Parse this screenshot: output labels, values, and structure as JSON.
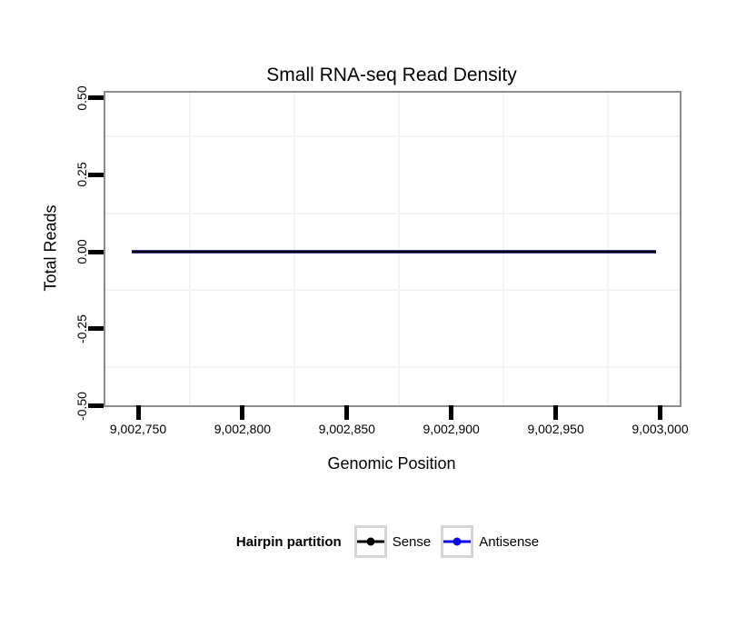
{
  "title": "Small RNA-seq Read Density",
  "axes": {
    "x": {
      "label": "Genomic Position",
      "tick_labels": [
        "9,002,750",
        "9,002,800",
        "9,002,850",
        "9,002,900",
        "9,002,950",
        "9,003,000"
      ]
    },
    "y": {
      "label": "Total Reads",
      "tick_labels": [
        "0.50",
        "0.25",
        "0.00",
        "-0.25",
        "-0.50"
      ]
    }
  },
  "legend": {
    "title": "Hairpin partition",
    "items": [
      {
        "label": "Sense",
        "color": "#000000"
      },
      {
        "label": "Antisense",
        "color": "#0b0be8"
      }
    ]
  },
  "colors": {
    "panel_border": "#8c8c8c",
    "minor_grid": "#f4f4f4",
    "tick": "#000000",
    "legend_key_border": "#d5d5d5",
    "series_blend": "#01010f"
  },
  "chart_data": {
    "type": "line",
    "title": "Small RNA-seq Read Density",
    "xlabel": "Genomic Position",
    "ylabel": "Total Reads",
    "x_ticks": [
      9002750,
      9002800,
      9002850,
      9002900,
      9002950,
      9003000
    ],
    "y_ticks": [
      0.5,
      0.25,
      0.0,
      -0.25,
      -0.5
    ],
    "xlim": [
      9002734,
      9003010
    ],
    "ylim": [
      -0.5,
      0.52
    ],
    "grid": "minor gridlines only, very light gray; no visible major gridlines",
    "legend_position": "bottom",
    "legend_title": "Hairpin partition",
    "series": [
      {
        "name": "Sense",
        "color": "#000000",
        "x": [
          9002747,
          9002998
        ],
        "y": [
          0,
          0
        ]
      },
      {
        "name": "Antisense",
        "color": "#0b0be8",
        "x": [
          9002747,
          9002998
        ],
        "y": [
          0,
          0
        ]
      }
    ],
    "note": "Both series are flat at 0 total reads across the region, overlapping as one dark navy-black horizontal line"
  }
}
